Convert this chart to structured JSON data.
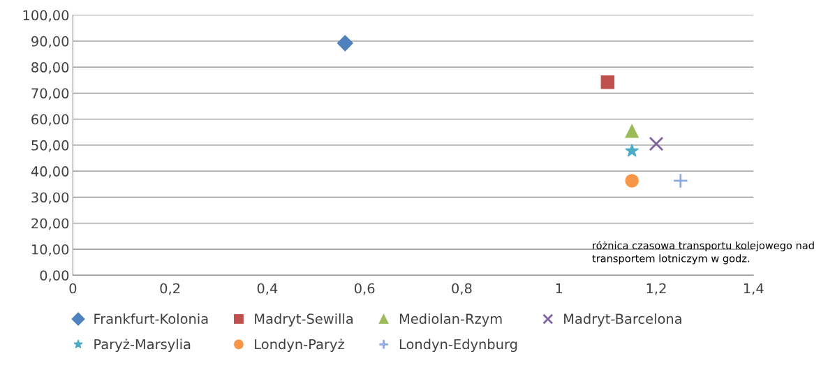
{
  "chart_data": {
    "type": "scatter",
    "xlabel": "różnica czasowa transportu kolejowego nad transportem lotniczym w godz.",
    "series": [
      {
        "name": "Frankfurt-Kolonia",
        "color": "#4f81bd",
        "marker": "diamond",
        "x": [
          0.56
        ],
        "values": [
          89.2
        ]
      },
      {
        "name": "Madryt-Sewilla",
        "color": "#c0504d",
        "marker": "square",
        "x": [
          1.1
        ],
        "values": [
          74.2
        ]
      },
      {
        "name": "Mediolan-Rzym",
        "color": "#9bbb59",
        "marker": "triangle",
        "x": [
          1.15
        ],
        "values": [
          55.4
        ]
      },
      {
        "name": "Madryt-Barcelona",
        "color": "#8064a2",
        "marker": "cross",
        "x": [
          1.2
        ],
        "values": [
          50.5
        ]
      },
      {
        "name": "Paryż-Marsylia",
        "color": "#4bacc6",
        "marker": "star",
        "x": [
          1.15
        ],
        "values": [
          47.8
        ]
      },
      {
        "name": "Londyn-Paryż",
        "color": "#f79646",
        "marker": "circle",
        "x": [
          1.15
        ],
        "values": [
          36.3
        ]
      },
      {
        "name": "Londyn-Edynburg",
        "color": "#8ea9db",
        "marker": "plus",
        "x": [
          1.25
        ],
        "values": [
          36.3
        ]
      }
    ],
    "xlim": [
      0,
      1.4
    ],
    "ylim": [
      0,
      100
    ],
    "xticks": [
      0,
      {
        "value": 0.2,
        "label": "0,2"
      },
      {
        "value": 0.4,
        "label": "0,4"
      },
      {
        "value": 0.6,
        "label": "0,6"
      },
      {
        "value": 0.8,
        "label": "0,8"
      },
      1,
      {
        "value": 1.2,
        "label": "1,2"
      },
      {
        "value": 1.4,
        "label": "1,4"
      }
    ],
    "yticks": [
      {
        "value": 0,
        "label": "0,00"
      },
      {
        "value": 10,
        "label": "10,00"
      },
      {
        "value": 20,
        "label": "20,00"
      },
      {
        "value": 30,
        "label": "30,00"
      },
      {
        "value": 40,
        "label": "40,00"
      },
      {
        "value": 50,
        "label": "50,00"
      },
      {
        "value": 60,
        "label": "60,00"
      },
      {
        "value": 70,
        "label": "70,00"
      },
      {
        "value": 80,
        "label": "80,00"
      },
      {
        "value": 90,
        "label": "90,00"
      },
      {
        "value": 100,
        "label": "100,00"
      }
    ],
    "grid": "y",
    "legend": "bottom"
  }
}
